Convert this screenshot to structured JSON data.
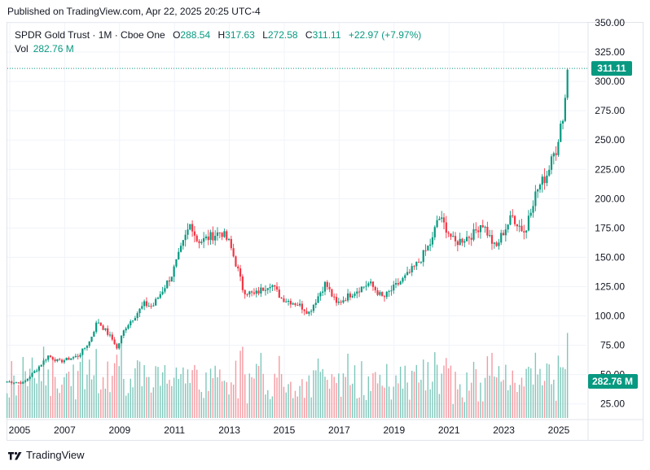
{
  "header": {
    "published": "Published on TradingView.com, Apr 22, 2025 20:25 UTC-4"
  },
  "legend": {
    "symbol": "SPDR Gold Trust · 1M · Cboe One",
    "open_key": "O",
    "open": "288.54",
    "high_key": "H",
    "high": "317.63",
    "low_key": "L",
    "low": "272.58",
    "close_key": "C",
    "close": "311.11",
    "change": "+22.97 (+7.97%)",
    "vol_key": "Vol",
    "vol": "282.76 M"
  },
  "footer": {
    "brand": "TradingView",
    "logo_icon": "tradingview-logo-icon"
  },
  "colors": {
    "up": "#089981",
    "down": "#f23645",
    "up_vol": "#7fc7bb",
    "down_vol": "#f49aa1",
    "grid": "#f0f3fa",
    "text": "#131722"
  },
  "chart_data": {
    "type": "candlestick",
    "title": "SPDR Gold Trust · 1M · Cboe One",
    "x_ticks": [
      "2005",
      "2007",
      "2009",
      "2011",
      "2013",
      "2015",
      "2017",
      "2019",
      "2021",
      "2023",
      "2025"
    ],
    "y_ticks": [
      "25.00",
      "50.00",
      "75.00",
      "100.00",
      "125.00",
      "150.00",
      "175.00",
      "200.00",
      "225.00",
      "250.00",
      "275.00",
      "300.00",
      "325.00",
      "350.00"
    ],
    "ylim": [
      13,
      350
    ],
    "last_price_label": "311.11",
    "last_volume_label": "282.76 M",
    "grid": true,
    "price_anchors": [
      [
        2004.9,
        44
      ],
      [
        2005.5,
        43
      ],
      [
        2006.0,
        55
      ],
      [
        2006.4,
        66
      ],
      [
        2006.8,
        61
      ],
      [
        2007.5,
        66
      ],
      [
        2007.9,
        78
      ],
      [
        2008.2,
        96
      ],
      [
        2008.8,
        78
      ],
      [
        2008.9,
        72
      ],
      [
        2009.2,
        90
      ],
      [
        2009.9,
        110
      ],
      [
        2010.2,
        108
      ],
      [
        2010.9,
        135
      ],
      [
        2011.6,
        180
      ],
      [
        2011.8,
        165
      ],
      [
        2012.0,
        164
      ],
      [
        2012.7,
        172
      ],
      [
        2013.0,
        162
      ],
      [
        2013.3,
        140
      ],
      [
        2013.5,
        122
      ],
      [
        2013.9,
        118
      ],
      [
        2014.5,
        128
      ],
      [
        2014.9,
        115
      ],
      [
        2015.5,
        110
      ],
      [
        2015.9,
        103
      ],
      [
        2016.5,
        128
      ],
      [
        2016.9,
        110
      ],
      [
        2017.5,
        120
      ],
      [
        2018.1,
        128
      ],
      [
        2018.6,
        115
      ],
      [
        2018.9,
        122
      ],
      [
        2019.5,
        135
      ],
      [
        2019.9,
        146
      ],
      [
        2020.4,
        165
      ],
      [
        2020.6,
        185
      ],
      [
        2020.9,
        175
      ],
      [
        2021.2,
        162
      ],
      [
        2021.9,
        170
      ],
      [
        2022.2,
        180
      ],
      [
        2022.7,
        157
      ],
      [
        2022.9,
        168
      ],
      [
        2023.3,
        185
      ],
      [
        2023.8,
        170
      ],
      [
        2023.9,
        187
      ],
      [
        2024.2,
        207
      ],
      [
        2024.6,
        222
      ],
      [
        2024.8,
        245
      ],
      [
        2024.95,
        240
      ],
      [
        2025.1,
        265
      ],
      [
        2025.25,
        288
      ],
      [
        2025.32,
        311
      ]
    ],
    "volume_range_millions": [
      40,
      330
    ]
  }
}
